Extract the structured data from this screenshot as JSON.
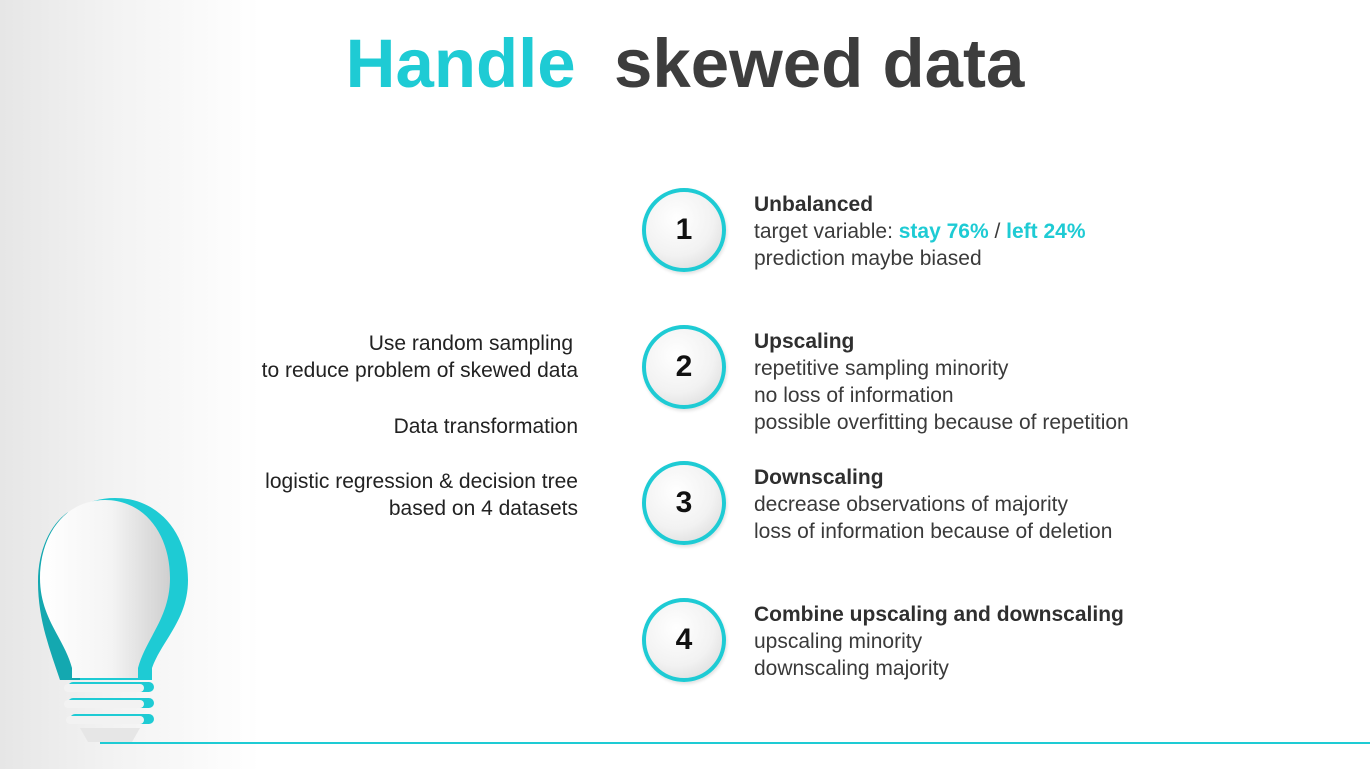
{
  "title": {
    "accent": "Handle",
    "rest": "skewed data"
  },
  "notes": [
    {
      "lines": [
        "Use random sampling",
        "to reduce problem of skewed data"
      ]
    },
    {
      "lines": [
        "Data transformation"
      ]
    },
    {
      "lines": [
        "logistic regression & decision tree",
        "based on 4 datasets"
      ]
    }
  ],
  "steps": [
    {
      "number": "1",
      "heading": "Unbalanced",
      "target_prefix": "target variable: ",
      "stay": "stay 76%",
      "sep": " / ",
      "left": "left 24%",
      "lines": [
        "prediction maybe biased"
      ]
    },
    {
      "number": "2",
      "heading": "Upscaling",
      "lines": [
        "repetitive sampling minority",
        "no loss of information",
        "possible overfitting because of repetition"
      ]
    },
    {
      "number": "3",
      "heading": "Downscaling",
      "lines": [
        "decrease observations of majority",
        "loss of information because of deletion"
      ]
    },
    {
      "number": "4",
      "heading": "Combine upscaling and downscaling",
      "lines": [
        "upscaling minority",
        "downscaling majority"
      ]
    }
  ],
  "colors": {
    "accent": "#1ecbd4",
    "text": "#3a3a3a"
  },
  "icons": {
    "decoration": "lightbulb-icon"
  }
}
